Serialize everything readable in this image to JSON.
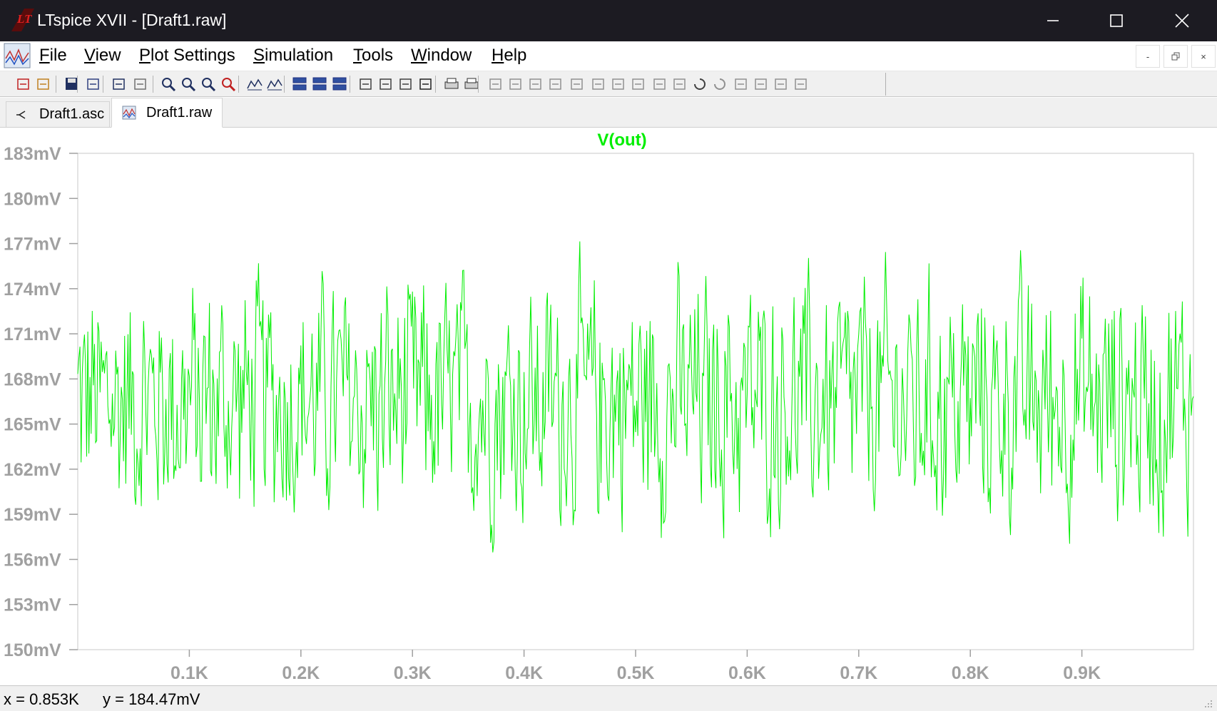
{
  "window": {
    "title": "LTspice XVII - [Draft1.raw]",
    "min_icon": "minimize-icon",
    "max_icon": "maximize-icon",
    "close_icon": "close-icon"
  },
  "menu": {
    "items": [
      {
        "accel": "F",
        "rest": "ile"
      },
      {
        "accel": "V",
        "rest": "iew"
      },
      {
        "accel": "P",
        "rest": "lot Settings"
      },
      {
        "accel": "S",
        "rest": "imulation"
      },
      {
        "accel": "T",
        "rest": "ools"
      },
      {
        "accel": "W",
        "rest": "indow"
      },
      {
        "accel": "H",
        "rest": "elp"
      }
    ],
    "mdi": {
      "min": "-",
      "restore": "ᵍ",
      "close": "×"
    }
  },
  "toolbar": {
    "icons": [
      "new-schematic-icon",
      "open-icon",
      "save-icon",
      "control-panel-icon",
      "run-icon",
      "halt-icon",
      "zoom-in-icon",
      "zoom-full-icon",
      "zoom-out-icon",
      "zoom-cancel-icon",
      "autorange-icon",
      "fit-icon",
      "tile-horizontal-icon",
      "cascade-icon",
      "tile-vertical-icon",
      "cut-icon",
      "copy-icon",
      "paste-icon",
      "find-icon",
      "print-icon",
      "print-setup-icon",
      "wire-icon",
      "ground-icon",
      "label-icon",
      "resistor-icon",
      "capacitor-icon",
      "inductor-icon",
      "diode-icon",
      "component-icon",
      "move-icon",
      "drag-icon",
      "undo-icon",
      "redo-icon",
      "rotate-icon",
      "mirror-icon",
      "text-icon",
      "spice-directive-icon"
    ]
  },
  "tabs": [
    {
      "label": "Draft1.asc",
      "icon": "schematic-icon"
    },
    {
      "label": "Draft1.raw",
      "icon": "waveform-icon"
    }
  ],
  "plot": {
    "trace_label": "V(out)",
    "trace_color": "#00ee00",
    "axis_color": "#a0a0a0",
    "y_tick_labels": [
      "183mV",
      "180mV",
      "177mV",
      "174mV",
      "171mV",
      "168mV",
      "165mV",
      "162mV",
      "159mV",
      "156mV",
      "153mV",
      "150mV"
    ],
    "x_tick_labels": [
      "0.1K",
      "0.2K",
      "0.3K",
      "0.4K",
      "0.5K",
      "0.6K",
      "0.7K",
      "0.8K",
      "0.9K"
    ]
  },
  "chart_data": {
    "type": "line",
    "title": "V(out)",
    "xlabel": "",
    "ylabel": "",
    "xlim": [
      0,
      1000
    ],
    "ylim": [
      150,
      183
    ],
    "y_unit": "mV",
    "x_unit": "K",
    "grid": false,
    "series": [
      {
        "name": "V(out)",
        "color": "#00ee00",
        "description_points": "noise-like signal sampled at 1 unit intervals",
        "x_start": 0,
        "x_end": 1000,
        "mean": 166.5,
        "min": 152.5,
        "max": 180.3
      }
    ]
  },
  "status": {
    "x_text": "x = 0.853K",
    "y_text": "y = 184.47mV"
  }
}
